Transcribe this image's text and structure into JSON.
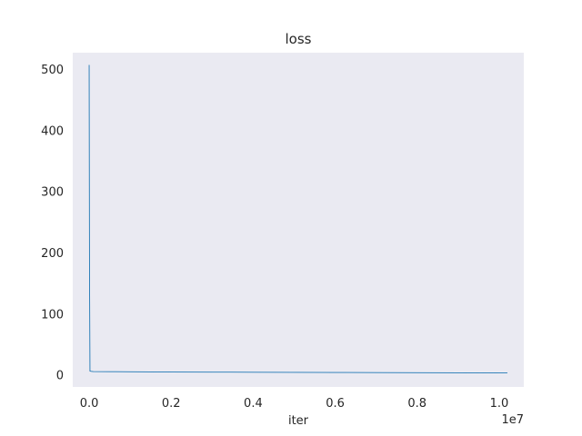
{
  "chart_data": {
    "type": "line",
    "title": "loss",
    "xlabel": "iter",
    "ylabel": "",
    "x_exponent_label": "1e7",
    "xlim": [
      -400000,
      10600000
    ],
    "ylim": [
      -20,
      527
    ],
    "x_ticks": [
      0.0,
      2000000,
      4000000,
      6000000,
      8000000,
      10000000
    ],
    "x_tick_labels": [
      "0.0",
      "0.2",
      "0.4",
      "0.6",
      "0.8",
      "1.0"
    ],
    "y_ticks": [
      0,
      100,
      200,
      300,
      400,
      500
    ],
    "y_tick_labels": [
      "0",
      "100",
      "200",
      "300",
      "400",
      "500"
    ],
    "grid": false,
    "background": "#eaeaf2",
    "series": [
      {
        "color": "#1f77b4",
        "x": [
          0,
          10000,
          20000,
          50000,
          100000,
          500000,
          1000000,
          2000000,
          3000000,
          4000000,
          5000000,
          6000000,
          7000000,
          8000000,
          9000000,
          10000000,
          10200000
        ],
        "y": [
          507,
          150,
          6,
          5.5,
          5.2,
          5.0,
          4.8,
          4.5,
          4.3,
          4.1,
          3.9,
          3.7,
          3.5,
          3.3,
          3.1,
          3.0,
          3.0
        ]
      }
    ]
  }
}
